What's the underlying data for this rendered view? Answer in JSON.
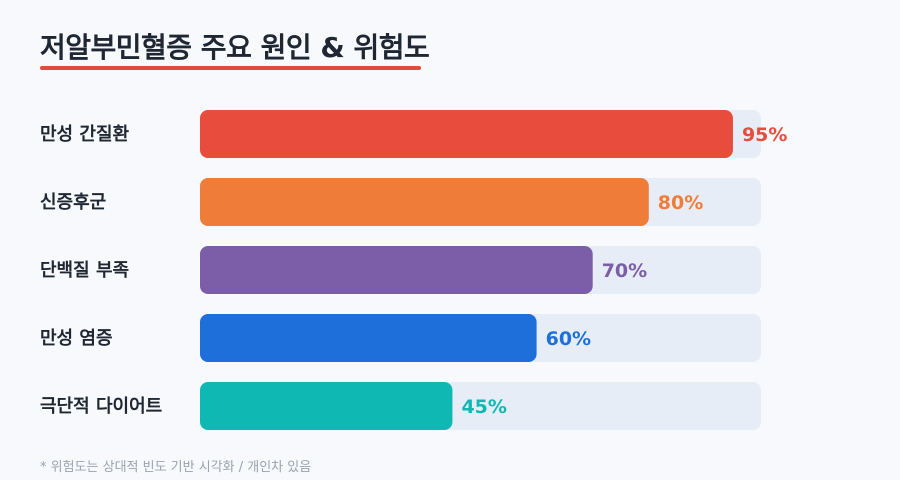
{
  "title": "저알부민혈증 주요 원인 & 위험도",
  "footnote": "* 위험도는 상대적 빈도 기반 시각화 / 개인차 있음",
  "chart_data": {
    "type": "bar",
    "orientation": "horizontal",
    "categories": [
      "만성 간질환",
      "신증후군",
      "단백질 부족",
      "만성 염증",
      "극단적 다이어트"
    ],
    "values": [
      95,
      80,
      70,
      60,
      45
    ],
    "value_suffix": "%",
    "xlim": [
      0,
      100
    ],
    "colors": [
      "#e84c3d",
      "#f07c3a",
      "#7b5ea7",
      "#1f6fdb",
      "#10b8b4"
    ],
    "track_color": "#e7edf6",
    "grid": false,
    "legend": "none"
  }
}
